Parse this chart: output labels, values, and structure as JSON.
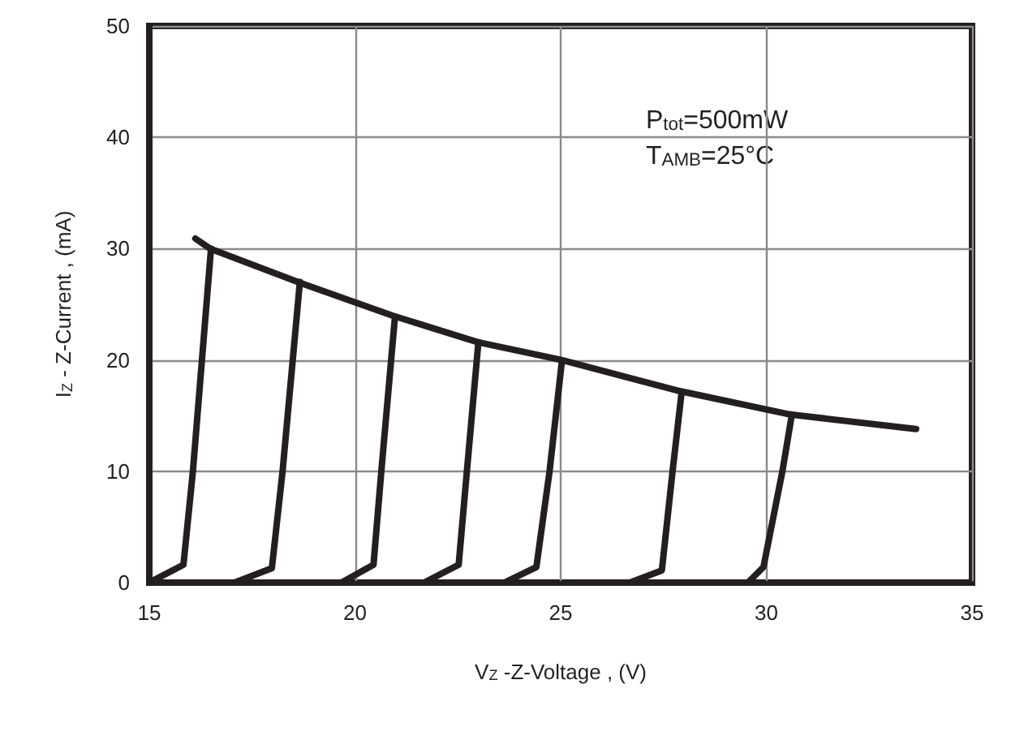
{
  "chart_data": {
    "type": "line",
    "xlabel": "V$_{Z}$ -Z-Voltage , (V)",
    "ylabel": "I$_{Z}$ - Z-Current , (mA)",
    "annotations": [
      "P$_{tot}$=500mW",
      "T$_{AMB}$=25°C"
    ],
    "xlim": [
      15,
      35
    ],
    "xticks": [
      15,
      20,
      25,
      30,
      35
    ],
    "ylim": [
      0,
      50
    ],
    "yticks": [
      0,
      10,
      20,
      30,
      40,
      50
    ],
    "grid": true,
    "marker": "none",
    "line_style": "solid",
    "series": [
      {
        "color": "#231f20",
        "x": [
          16.12,
          16.48,
          18.69,
          20.9,
          22.98,
          25.02,
          27.9,
          30.58,
          33.64
        ],
        "values": [
          30.9,
          30.0,
          26.9,
          24.0,
          21.6,
          20.0,
          17.2,
          15.1,
          13.8
        ]
      },
      {
        "color": "#231f20",
        "x": [
          15.05,
          15.83,
          16.06,
          16.5
        ],
        "values": [
          0.1,
          1.6,
          10,
          30.0
        ]
      },
      {
        "color": "#231f20",
        "x": [
          17.07,
          17.98,
          18.24,
          18.66
        ],
        "values": [
          0,
          1.3,
          10,
          27.0
        ]
      },
      {
        "color": "#231f20",
        "x": [
          19.67,
          20.45,
          20.64,
          20.97
        ],
        "values": [
          0,
          1.6,
          10,
          23.8
        ]
      },
      {
        "color": "#231f20",
        "x": [
          21.68,
          22.52,
          22.72,
          23.0
        ],
        "values": [
          0,
          1.6,
          10,
          21.6
        ]
      },
      {
        "color": "#231f20",
        "x": [
          23.63,
          24.41,
          24.73,
          25.03
        ],
        "values": [
          0,
          1.4,
          10,
          19.9
        ]
      },
      {
        "color": "#231f20",
        "x": [
          26.68,
          27.46,
          27.72,
          27.94
        ],
        "values": [
          0,
          1.1,
          10,
          17.1
        ]
      },
      {
        "color": "#231f20",
        "x": [
          29.55,
          29.93,
          30.39,
          30.62
        ],
        "values": [
          0,
          1.4,
          10,
          15.1
        ]
      }
    ]
  }
}
